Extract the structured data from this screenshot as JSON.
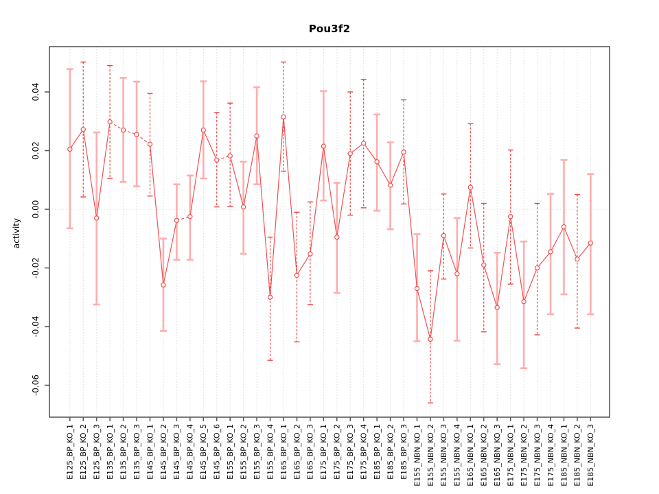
{
  "title": "Pou3f2",
  "chart_data": {
    "type": "line",
    "title": "Pou3f2",
    "xlabel": "",
    "ylabel": "activity",
    "ylim": [
      -0.071,
      0.055
    ],
    "yticks": [
      0.04,
      0.02,
      0.0,
      -0.02,
      -0.04,
      -0.06
    ],
    "grid": "vertical-dotted",
    "zero_line": true,
    "legend": "none",
    "categories": [
      "E125_BP_KO_1",
      "E125_BP_KO_2",
      "E125_BP_KO_3",
      "E135_BP_KO_1",
      "E135_BP_KO_2",
      "E135_BP_KO_3",
      "E145_BP_KO_1",
      "E145_BP_KO_2",
      "E145_BP_KO_3",
      "E145_BP_KO_4",
      "E145_BP_KO_5",
      "E145_BP_KO_6",
      "E155_BP_KO_1",
      "E155_BP_KO_2",
      "E155_BP_KO_3",
      "E155_BP_KO_4",
      "E165_BP_KO_1",
      "E165_BP_KO_2",
      "E165_BP_KO_3",
      "E175_BP_KO_1",
      "E175_BP_KO_2",
      "E175_BP_KO_3",
      "E175_BP_KO_4",
      "E185_BP_KO_1",
      "E185_BP_KO_2",
      "E185_BP_KO_3",
      "E155_NBN_KO_1",
      "E155_NBN_KO_2",
      "E155_NBN_KO_3",
      "E155_NBN_KO_4",
      "E165_NBN_KO_1",
      "E165_NBN_KO_2",
      "E165_NBN_KO_3",
      "E175_NBN_KO_1",
      "E175_NBN_KO_2",
      "E175_NBN_KO_3",
      "E175_NBN_KO_4",
      "E185_NBN_KO_1",
      "E185_NBN_KO_2",
      "E185_NBN_KO_3"
    ],
    "series": [
      {
        "name": "activity",
        "values": [
          0.0205,
          0.0272,
          -0.003,
          0.0298,
          0.027,
          0.0255,
          0.0222,
          -0.0258,
          -0.0038,
          -0.0025,
          0.027,
          0.0168,
          0.0182,
          0.0008,
          0.025,
          -0.03,
          0.0315,
          -0.0225,
          -0.0152,
          0.0215,
          -0.0095,
          0.019,
          0.0225,
          0.0162,
          0.0082,
          0.0195,
          -0.027,
          -0.0443,
          -0.009,
          -0.022,
          0.0075,
          -0.019,
          -0.0335,
          -0.0025,
          -0.0315,
          -0.02,
          -0.0145,
          -0.006,
          -0.017,
          -0.0115
        ],
        "error_low": [
          -0.0065,
          0.0042,
          -0.0325,
          0.0105,
          0.0093,
          0.0078,
          0.0045,
          -0.0415,
          -0.0172,
          -0.0172,
          0.0105,
          0.0008,
          0.001,
          -0.0152,
          0.0085,
          -0.0515,
          0.013,
          -0.0452,
          -0.0325,
          0.003,
          -0.0285,
          -0.002,
          0.0005,
          -0.0005,
          -0.0068,
          0.0018,
          -0.045,
          -0.066,
          -0.0238,
          -0.0448,
          -0.0132,
          -0.0418,
          -0.0528,
          -0.0255,
          -0.0542,
          -0.0428,
          -0.0358,
          -0.029,
          -0.0405,
          -0.0358
        ],
        "error_high": [
          0.0478,
          0.0502,
          0.0262,
          0.049,
          0.0448,
          0.0435,
          0.0395,
          -0.01,
          0.0085,
          0.0115,
          0.0436,
          0.033,
          0.0362,
          0.0162,
          0.0416,
          -0.0095,
          0.0502,
          -0.001,
          0.0025,
          0.0403,
          0.009,
          0.04,
          0.0443,
          0.0323,
          0.0228,
          0.0373,
          -0.0085,
          -0.021,
          0.0052,
          -0.003,
          0.0292,
          0.002,
          -0.0148,
          0.0202,
          -0.011,
          0.002,
          0.0052,
          0.0168,
          0.005,
          0.012
        ],
        "bar_styles": [
          "solid",
          "dashed",
          "solid",
          "dashed",
          "solid",
          "solid",
          "dashed",
          "solid",
          "solid",
          "solid",
          "solid",
          "dashed",
          "dashed",
          "solid",
          "solid",
          "dashed",
          "dashed",
          "dashed",
          "dashed",
          "solid",
          "solid",
          "dashed",
          "dashed",
          "solid",
          "solid",
          "dashed",
          "solid",
          "dashed",
          "dashed",
          "solid",
          "dashed",
          "dashed",
          "solid",
          "dashed",
          "solid",
          "dashed",
          "solid",
          "solid",
          "dashed",
          "solid"
        ]
      }
    ],
    "dashed_segments": [
      [
        3,
        4
      ],
      [
        4,
        5
      ],
      [
        5,
        6
      ],
      [
        8,
        9
      ],
      [
        11,
        12
      ]
    ],
    "colors": {
      "line": "#f05050",
      "error_bar_solid": "#ffadad",
      "error_bar_dashed": "#ee4444",
      "grid": "#dcdcdc",
      "frame": "#5a5a5a",
      "text": "#000000",
      "background": "#ffffff"
    }
  }
}
